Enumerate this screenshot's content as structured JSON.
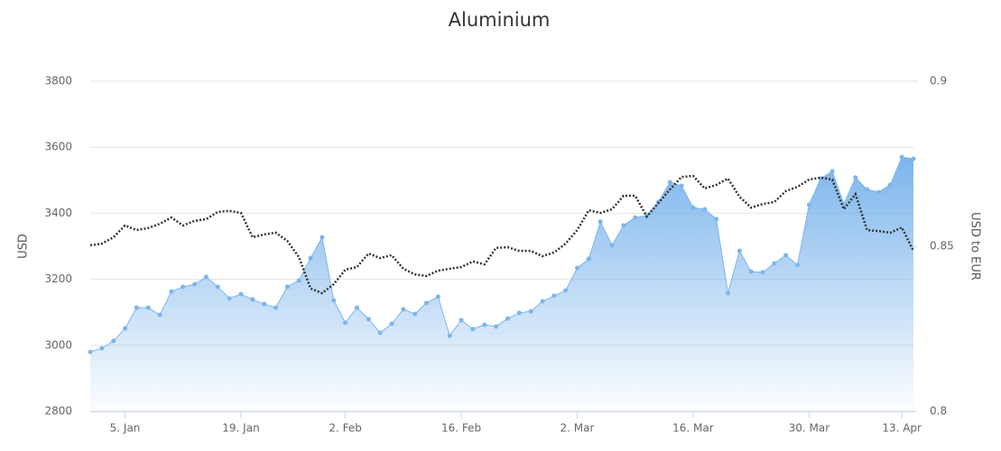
{
  "chart_data": {
    "type": "line",
    "title": "Aluminium",
    "y_label": "USD",
    "y2_label": "USD to EUR",
    "categories": [
      null,
      null,
      null,
      "5. Jan",
      null,
      null,
      null,
      null,
      null,
      null,
      null,
      null,
      null,
      "19. Jan",
      null,
      null,
      null,
      null,
      null,
      null,
      null,
      null,
      "2. Feb",
      null,
      null,
      null,
      null,
      null,
      null,
      null,
      null,
      null,
      "16. Feb",
      null,
      null,
      null,
      null,
      null,
      null,
      null,
      null,
      null,
      "2. Mar",
      null,
      null,
      null,
      null,
      null,
      null,
      null,
      null,
      null,
      "16. Mar",
      null,
      null,
      null,
      null,
      null,
      null,
      null,
      null,
      null,
      "30. Mar",
      null,
      null,
      null,
      null,
      null,
      null,
      null,
      "13. Apr",
      null
    ],
    "series": [
      {
        "kind": "area",
        "color": "#7cb5ec",
        "markers": true,
        "values": [
          2980,
          2991,
          3013,
          3051,
          3114,
          3114,
          3092,
          3163,
          3177,
          3185,
          3207,
          3177,
          3142,
          3155,
          3139,
          3125,
          3114,
          3177,
          3196,
          3264,
          3327,
          3136,
          3068,
          3114,
          3079,
          3038,
          3065,
          3109,
          3095,
          3128,
          3147,
          3029,
          3076,
          3049,
          3062,
          3057,
          3081,
          3098,
          3103,
          3133,
          3150,
          3166,
          3234,
          3262,
          3374,
          3303,
          3363,
          3387,
          3393,
          3434,
          3494,
          3483,
          3417,
          3412,
          3382,
          3158,
          3286,
          3223,
          3221,
          3248,
          3273,
          3243,
          3426,
          3505,
          3527,
          3428,
          3508,
          3472,
          3464,
          3486,
          3570,
          3565
        ]
      },
      {
        "kind": "line",
        "color": "#333333",
        "dash": "dotted",
        "axis": "y2",
        "values": [
          0.8503,
          0.8508,
          0.8527,
          0.8563,
          0.8549,
          0.8555,
          0.8568,
          0.8587,
          0.8563,
          0.8577,
          0.8582,
          0.8604,
          0.8607,
          0.8601,
          0.8527,
          0.8536,
          0.8541,
          0.8516,
          0.8467,
          0.8372,
          0.8358,
          0.8385,
          0.8429,
          0.8437,
          0.8478,
          0.8464,
          0.8473,
          0.8432,
          0.8415,
          0.841,
          0.8426,
          0.8432,
          0.8437,
          0.8454,
          0.8445,
          0.8495,
          0.8497,
          0.8486,
          0.8486,
          0.847,
          0.8481,
          0.8508,
          0.8549,
          0.8609,
          0.8601,
          0.8612,
          0.8653,
          0.8653,
          0.859,
          0.8631,
          0.8672,
          0.871,
          0.8713,
          0.8675,
          0.8686,
          0.8705,
          0.865,
          0.8617,
          0.8628,
          0.8634,
          0.8667,
          0.868,
          0.8702,
          0.8708,
          0.8702,
          0.8612,
          0.8658,
          0.8549,
          0.8546,
          0.8541,
          0.8557,
          0.8486
        ]
      }
    ],
    "ylim": [
      2800,
      3800
    ],
    "yticks": [
      2800,
      3000,
      3200,
      3400,
      3600,
      3800
    ],
    "y2lim": [
      0.8,
      0.9
    ],
    "y2ticks": [
      0.8,
      0.85,
      0.9
    ],
    "grid": true
  }
}
